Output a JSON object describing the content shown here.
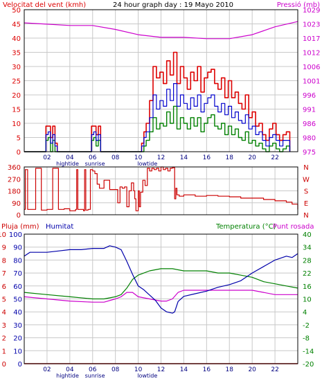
{
  "colors": {
    "wind": "#dd0000",
    "wind_gust": "#dd0000",
    "wind_avg": "#0000cc",
    "wind_low": "#008000",
    "pressure": "#cc00cc",
    "direction": "#cc0000",
    "humidity": "#0000aa",
    "temperature": "#008000",
    "dewpoint": "#cc00cc",
    "rain": "#cc0000",
    "grid": "#c8c8c8",
    "frame": "#000000"
  },
  "top": {
    "title": "24 hour graph day : 19 Mayo 2010",
    "left_label": "Velocitat del vent (kmh)",
    "right_label": "Pressió (mb)",
    "left_ticks": [
      "50",
      "45",
      "40",
      "35",
      "30",
      "25",
      "20",
      "15",
      "10",
      "5",
      "0"
    ],
    "right_ticks": [
      "1029",
      "1023",
      "1017",
      "1012",
      "1006",
      "1001",
      "996",
      "991",
      "986",
      "980",
      "975"
    ],
    "x_ticks": [
      "02",
      "04",
      "06",
      "08",
      "10",
      "12",
      "14",
      "16",
      "18",
      "20",
      "22"
    ],
    "tide_labels": [
      {
        "text": "hightide",
        "hour": 3.8
      },
      {
        "text": "sunrise",
        "hour": 6.2
      },
      {
        "text": "lowtide",
        "hour": 10.8
      }
    ]
  },
  "middle": {
    "left_ticks": [
      "360",
      "270",
      "180",
      "90",
      "0"
    ],
    "right_letters": [
      "N",
      "W",
      "S",
      "E",
      "N"
    ]
  },
  "bottom": {
    "rain_label": "Pluja (mm)",
    "humidity_label": "Humitat",
    "temp_label": "Temperatura (°C)",
    "dew_label": "Punt rosada",
    "rain_ticks": [
      "10",
      "9",
      "8",
      "7",
      "6",
      "5",
      "4",
      "3",
      "2",
      "1",
      "0"
    ],
    "hum_ticks": [
      "100",
      "90",
      "80",
      "70",
      "60",
      "50",
      "40",
      "30",
      "20",
      "10",
      "0"
    ],
    "temp_ticks": [
      "40",
      "34",
      "28",
      "22",
      "16",
      "10",
      "4",
      "-2",
      "-8",
      "-14",
      "-20"
    ],
    "x_ticks": [
      "02",
      "04",
      "06",
      "08",
      "10",
      "12",
      "14",
      "16",
      "18",
      "20",
      "22"
    ],
    "tide_labels": [
      {
        "text": "hightide",
        "hour": 3.8
      },
      {
        "text": "sunrise",
        "hour": 6.2
      },
      {
        "text": "lowtide",
        "hour": 10.8
      }
    ]
  },
  "chart_data": [
    {
      "type": "line",
      "title": "24 hour graph day : 19 Mayo 2010",
      "ylabel": "Velocitat del vent (kmh)",
      "y2label": "Pressió (mb)",
      "ylim": [
        0,
        50
      ],
      "y2lim": [
        975,
        1029
      ],
      "xlim": [
        0,
        24
      ],
      "series": [
        {
          "role": "wind_gust",
          "x": [
            0,
            1.8,
            1.9,
            2.1,
            2.3,
            2.5,
            2.7,
            2.9,
            3.5,
            5.8,
            5.9,
            6.1,
            6.3,
            6.5,
            6.7,
            8.0,
            9.7,
            10.3,
            10.5,
            10.7,
            11.0,
            11.3,
            11.6,
            11.9,
            12.2,
            12.5,
            12.8,
            13.1,
            13.4,
            13.7,
            14.0,
            14.3,
            14.6,
            14.9,
            15.2,
            15.5,
            15.8,
            16.1,
            16.4,
            16.7,
            17.0,
            17.3,
            17.6,
            17.9,
            18.2,
            18.5,
            18.8,
            19.1,
            19.4,
            19.7,
            20.0,
            20.3,
            20.6,
            20.9,
            21.2,
            21.5,
            21.8,
            22.1,
            22.4,
            22.7,
            23.0,
            23.3
          ],
          "y": [
            0,
            0,
            9,
            9,
            5,
            9,
            3,
            0,
            0,
            0,
            9,
            9,
            6,
            9,
            0,
            0,
            0,
            3,
            7,
            10,
            18,
            30,
            26,
            28,
            24,
            32,
            27,
            35,
            24,
            30,
            26,
            22,
            28,
            25,
            30,
            21,
            26,
            28,
            29,
            24,
            22,
            26,
            19,
            25,
            19,
            21,
            17,
            15,
            20,
            12,
            14,
            9,
            10,
            6,
            4,
            8,
            10,
            6,
            4,
            6,
            7,
            0
          ]
        },
        {
          "role": "wind_avg",
          "x": [
            0,
            1.8,
            1.9,
            2.1,
            2.3,
            2.5,
            2.7,
            2.9,
            3.5,
            5.8,
            5.9,
            6.1,
            6.3,
            6.5,
            6.7,
            8.0,
            9.7,
            10.3,
            10.5,
            10.7,
            11.0,
            11.3,
            11.6,
            11.9,
            12.2,
            12.5,
            12.8,
            13.1,
            13.4,
            13.7,
            14.0,
            14.3,
            14.6,
            14.9,
            15.2,
            15.5,
            15.8,
            16.1,
            16.4,
            16.7,
            17.0,
            17.3,
            17.6,
            17.9,
            18.2,
            18.5,
            18.8,
            19.1,
            19.4,
            19.7,
            20.0,
            20.3,
            20.6,
            20.9,
            21.2,
            21.5,
            21.8,
            22.1,
            22.4,
            22.7,
            23.0,
            23.3
          ],
          "y": [
            0,
            0,
            6,
            7,
            3,
            6,
            2,
            0,
            0,
            0,
            6,
            7,
            4,
            6,
            0,
            0,
            0,
            2,
            5,
            7,
            12,
            20,
            15,
            18,
            16,
            22,
            18,
            24,
            16,
            20,
            17,
            15,
            19,
            16,
            20,
            14,
            17,
            19,
            20,
            16,
            14,
            17,
            13,
            16,
            12,
            14,
            11,
            10,
            13,
            8,
            9,
            6,
            7,
            4,
            2,
            5,
            6,
            4,
            2,
            4,
            4,
            0
          ]
        },
        {
          "role": "wind_low",
          "x": [
            0,
            1.8,
            1.9,
            2.1,
            2.3,
            2.5,
            2.7,
            2.9,
            3.5,
            5.8,
            5.9,
            6.1,
            6.3,
            6.5,
            6.7,
            8.0,
            9.7,
            10.3,
            10.5,
            10.7,
            11.0,
            11.3,
            11.6,
            11.9,
            12.2,
            12.5,
            12.8,
            13.1,
            13.4,
            13.7,
            14.0,
            14.3,
            14.6,
            14.9,
            15.2,
            15.5,
            15.8,
            16.1,
            16.4,
            16.7,
            17.0,
            17.3,
            17.6,
            17.9,
            18.2,
            18.5,
            18.8,
            19.1,
            19.4,
            19.7,
            20.0,
            20.3,
            20.6,
            20.9,
            21.2,
            21.5,
            21.8,
            22.1,
            22.4,
            22.7,
            23.0,
            23.3
          ],
          "y": [
            0,
            0,
            4,
            5,
            0,
            4,
            0,
            0,
            0,
            0,
            4,
            5,
            2,
            4,
            0,
            0,
            0,
            0,
            2,
            4,
            7,
            12,
            8,
            10,
            9,
            14,
            10,
            16,
            8,
            12,
            10,
            8,
            12,
            9,
            12,
            7,
            10,
            12,
            13,
            9,
            8,
            10,
            6,
            9,
            6,
            8,
            5,
            4,
            7,
            3,
            4,
            2,
            3,
            1,
            0,
            2,
            3,
            1,
            0,
            1,
            2,
            0
          ]
        },
        {
          "role": "pressure",
          "axis": "right",
          "x": [
            0,
            2,
            4,
            6,
            8,
            10,
            11,
            12,
            13,
            14,
            16,
            18,
            20,
            22,
            24
          ],
          "y": [
            1024,
            1023.5,
            1023,
            1023,
            1021.5,
            1019.5,
            1019,
            1018.5,
            1018.5,
            1018.5,
            1018,
            1018,
            1019.5,
            1022.5,
            1024.5
          ]
        }
      ]
    },
    {
      "type": "line",
      "ylim": [
        0,
        360
      ],
      "xlim": [
        0,
        24
      ],
      "series": [
        {
          "role": "wind_direction",
          "x": [
            0,
            0.1,
            0.2,
            0.3,
            0.5,
            1.0,
            1.5,
            2.0,
            2.5,
            3.0,
            3.5,
            4.0,
            4.5,
            4.6,
            4.7,
            5.2,
            5.3,
            5.4,
            5.6,
            5.8,
            6.0,
            6.2,
            6.4,
            6.6,
            7.0,
            7.5,
            8.0,
            8.2,
            8.4,
            8.6,
            8.8,
            9.0,
            9.2,
            9.4,
            9.6,
            9.7,
            9.8,
            10.0,
            10.1,
            10.2,
            10.4,
            10.6,
            10.8,
            11.0,
            11.2,
            11.4,
            11.6,
            11.8,
            12.0,
            12.2,
            12.4,
            12.6,
            12.8,
            13.0,
            13.2,
            13.3,
            13.4,
            13.6,
            14.0,
            15.0,
            16.0,
            17.0,
            18.0,
            19.0,
            20.0,
            21.0,
            22.0,
            23.0,
            23.5,
            24.0
          ],
          "y": [
            40,
            340,
            340,
            40,
            40,
            350,
            35,
            40,
            350,
            40,
            45,
            30,
            40,
            340,
            40,
            30,
            340,
            35,
            40,
            340,
            330,
            310,
            230,
            200,
            260,
            190,
            190,
            90,
            210,
            200,
            210,
            60,
            180,
            240,
            180,
            120,
            30,
            180,
            60,
            170,
            260,
            220,
            350,
            330,
            350,
            340,
            350,
            330,
            360,
            340,
            350,
            330,
            350,
            355,
            120,
            200,
            150,
            140,
            150,
            140,
            145,
            140,
            135,
            125,
            125,
            115,
            105,
            95,
            80,
            40
          ]
        }
      ]
    },
    {
      "type": "line",
      "ylabel": "Pluja (mm)",
      "y2label": "Temperatura (°C)",
      "ylim": [
        0,
        10
      ],
      "y2lim": [
        -20,
        40
      ],
      "xlim": [
        0,
        24
      ],
      "series": [
        {
          "name": "Humitat",
          "axis": "humidity",
          "ylim": [
            0,
            100
          ],
          "x": [
            0,
            0.5,
            1,
            2,
            3,
            4,
            5,
            6,
            7,
            7.5,
            8,
            8.5,
            9,
            9.5,
            10,
            10.5,
            11,
            11.5,
            12,
            12.5,
            13,
            13.2,
            13.5,
            14,
            15,
            16,
            17,
            18,
            19,
            20,
            21,
            22,
            23,
            23.5,
            24
          ],
          "y": [
            83,
            86,
            86,
            86,
            87,
            88,
            88,
            89,
            89,
            91,
            90,
            88,
            79,
            69,
            60,
            57,
            53,
            49,
            43,
            40,
            39,
            40,
            48,
            52,
            54,
            56,
            59,
            61,
            64,
            70,
            75,
            80,
            83,
            82,
            85
          ]
        },
        {
          "name": "Temperatura (°C)",
          "axis": "temperature",
          "x": [
            0,
            2,
            4,
            6,
            7,
            8,
            8.5,
            9,
            9.5,
            10,
            10.5,
            11,
            12,
            13,
            14,
            15,
            16,
            17,
            18,
            19,
            20,
            21,
            22,
            23,
            24
          ],
          "y": [
            13,
            12,
            11,
            10,
            10,
            11,
            12,
            15,
            19,
            21,
            22,
            23,
            24,
            24,
            23,
            23,
            23,
            22,
            22,
            21,
            20,
            18,
            17,
            16,
            15
          ]
        },
        {
          "name": "Punt rosada",
          "axis": "temperature",
          "x": [
            0,
            2,
            4,
            6,
            7,
            8,
            8.5,
            9,
            9.5,
            10,
            11,
            12,
            12.5,
            13,
            13.5,
            14,
            15,
            16,
            17,
            18,
            19,
            20,
            21,
            22,
            23,
            24
          ],
          "y": [
            11,
            10,
            9,
            8.5,
            8.5,
            10,
            11,
            13,
            13,
            11,
            10,
            9,
            9,
            10,
            13,
            14,
            14,
            14,
            14,
            14,
            14,
            14,
            13,
            12,
            12,
            12
          ]
        },
        {
          "name": "Pluja (mm)",
          "axis": "rain",
          "x": [
            0,
            24
          ],
          "y": [
            0,
            0
          ]
        }
      ]
    }
  ]
}
